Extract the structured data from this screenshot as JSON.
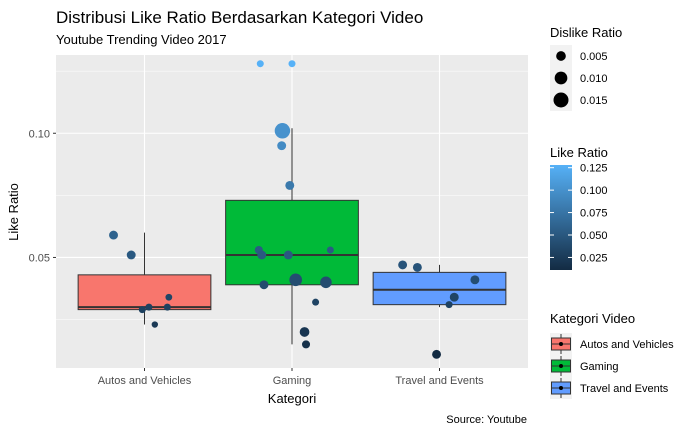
{
  "chart_data": {
    "type": "box",
    "title": "Distribusi Like Ratio Berdasarkan Kategori Video",
    "subtitle": "Youtube Trending Video 2017",
    "xlabel": "Kategori",
    "ylabel": "Like Ratio",
    "caption": "Source: Youtube",
    "ylim": [
      0.0055,
      0.1315
    ],
    "y_ticks": [
      0.05,
      0.1
    ],
    "y_tick_labels": [
      "0.05",
      "0.10"
    ],
    "grid": true,
    "categories": [
      "Autos and Vehicles",
      "Gaming",
      "Travel and Events"
    ],
    "fill_legend_title": "Kategori Video",
    "fill_legend_entries": [
      "Autos and Vehicles",
      "Gaming",
      "Travel and Events"
    ],
    "fill_colors": [
      "#F8766D",
      "#00BA38",
      "#619CFF"
    ],
    "size_legend_title": "Dislike Ratio",
    "size_legend_labels": [
      "0.005",
      "0.010",
      "0.015"
    ],
    "size_legend_values": [
      0.005,
      0.01,
      0.015
    ],
    "color_legend_title": "Like Ratio",
    "color_legend_labels": [
      "0.125",
      "0.100",
      "0.075",
      "0.050",
      "0.025"
    ],
    "color_legend_values": [
      0.125,
      0.1,
      0.075,
      0.05,
      0.025
    ],
    "color_scale": {
      "low": "#132B43",
      "high": "#56B1F7",
      "range": [
        0.011,
        0.128
      ]
    },
    "legend_placement": "right",
    "boxes": [
      {
        "category": "Autos and Vehicles",
        "whisker_low": 0.023,
        "q1": 0.029,
        "median": 0.03,
        "q3": 0.043,
        "whisker_high": 0.06
      },
      {
        "category": "Gaming",
        "whisker_low": 0.015,
        "q1": 0.039,
        "median": 0.051,
        "q3": 0.073,
        "whisker_high": 0.102
      },
      {
        "category": "Travel and Events",
        "whisker_low": 0.03,
        "q1": 0.031,
        "median": 0.037,
        "q3": 0.044,
        "whisker_high": 0.047
      }
    ],
    "points": [
      {
        "category": "Autos and Vehicles",
        "x_offset": -0.42,
        "y": 0.059,
        "dislike_ratio": 0.004
      },
      {
        "category": "Autos and Vehicles",
        "x_offset": -0.18,
        "y": 0.051,
        "dislike_ratio": 0.004
      },
      {
        "category": "Autos and Vehicles",
        "x_offset": -0.03,
        "y": 0.029,
        "dislike_ratio": 0.002
      },
      {
        "category": "Autos and Vehicles",
        "x_offset": 0.06,
        "y": 0.03,
        "dislike_ratio": 0.002
      },
      {
        "category": "Autos and Vehicles",
        "x_offset": 0.14,
        "y": 0.023,
        "dislike_ratio": 0.0015
      },
      {
        "category": "Autos and Vehicles",
        "x_offset": 0.31,
        "y": 0.03,
        "dislike_ratio": 0.002
      },
      {
        "category": "Autos and Vehicles",
        "x_offset": 0.33,
        "y": 0.034,
        "dislike_ratio": 0.0018
      },
      {
        "category": "Gaming",
        "x_offset": -0.43,
        "y": 0.128,
        "dislike_ratio": 0.002
      },
      {
        "category": "Gaming",
        "x_offset": -0.45,
        "y": 0.053,
        "dislike_ratio": 0.003
      },
      {
        "category": "Gaming",
        "x_offset": -0.41,
        "y": 0.051,
        "dislike_ratio": 0.004
      },
      {
        "category": "Gaming",
        "x_offset": -0.38,
        "y": 0.039,
        "dislike_ratio": 0.004
      },
      {
        "category": "Gaming",
        "x_offset": -0.13,
        "y": 0.101,
        "dislike_ratio": 0.016
      },
      {
        "category": "Gaming",
        "x_offset": -0.14,
        "y": 0.095,
        "dislike_ratio": 0.004
      },
      {
        "category": "Gaming",
        "x_offset": -0.03,
        "y": 0.079,
        "dislike_ratio": 0.004
      },
      {
        "category": "Gaming",
        "x_offset": -0.05,
        "y": 0.051,
        "dislike_ratio": 0.004
      },
      {
        "category": "Gaming",
        "x_offset": 0.0,
        "y": 0.128,
        "dislike_ratio": 0.002
      },
      {
        "category": "Gaming",
        "x_offset": 0.05,
        "y": 0.041,
        "dislike_ratio": 0.01
      },
      {
        "category": "Gaming",
        "x_offset": 0.17,
        "y": 0.02,
        "dislike_ratio": 0.005
      },
      {
        "category": "Gaming",
        "x_offset": 0.19,
        "y": 0.015,
        "dislike_ratio": 0.003
      },
      {
        "category": "Gaming",
        "x_offset": 0.32,
        "y": 0.032,
        "dislike_ratio": 0.002
      },
      {
        "category": "Gaming",
        "x_offset": 0.46,
        "y": 0.04,
        "dislike_ratio": 0.008
      },
      {
        "category": "Gaming",
        "x_offset": 0.52,
        "y": 0.053,
        "dislike_ratio": 0.002
      },
      {
        "category": "Travel and Events",
        "x_offset": -0.5,
        "y": 0.047,
        "dislike_ratio": 0.004
      },
      {
        "category": "Travel and Events",
        "x_offset": -0.3,
        "y": 0.046,
        "dislike_ratio": 0.004
      },
      {
        "category": "Travel and Events",
        "x_offset": -0.04,
        "y": 0.011,
        "dislike_ratio": 0.004
      },
      {
        "category": "Travel and Events",
        "x_offset": 0.13,
        "y": 0.031,
        "dislike_ratio": 0.002
      },
      {
        "category": "Travel and Events",
        "x_offset": 0.2,
        "y": 0.034,
        "dislike_ratio": 0.004
      },
      {
        "category": "Travel and Events",
        "x_offset": 0.48,
        "y": 0.041,
        "dislike_ratio": 0.004
      }
    ]
  }
}
